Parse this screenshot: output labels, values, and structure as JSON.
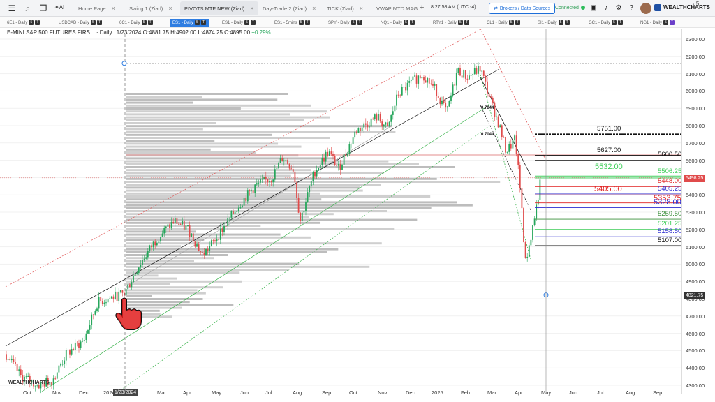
{
  "toolbar": {
    "ai_label": "AI",
    "tabs": [
      {
        "label": "Home Page"
      },
      {
        "label": "Swing 1 (Ziad)"
      },
      {
        "label": "PIVOTS MTF NEW (Ziad)"
      },
      {
        "label": "Day-Trade 2 (Ziad)"
      },
      {
        "label": "TICK (Ziad)"
      },
      {
        "label": "VWAP MTD MAG"
      }
    ],
    "close_glyph": "×",
    "add_glyph": "+",
    "time": "8:27:58 AM  (UTC -4)",
    "brokers_label": "Brokers / Data Sources",
    "connected_label": "Connected",
    "logo": "WEALTHCHARTS"
  },
  "symbols": [
    {
      "label": "6E1 - Daily",
      "b1": "5",
      "b2": "T"
    },
    {
      "label": "USDCAD - Daily",
      "b1": "5",
      "b2": "T"
    },
    {
      "label": "6C1 - Daily",
      "b1": "5",
      "b2": "T"
    },
    {
      "label": "ES1 - Daily",
      "b1": "5",
      "b2": "T"
    },
    {
      "label": "ES1 - Daily",
      "b1": "5",
      "b2": "T"
    },
    {
      "label": "ES1 - 5mins",
      "b1": "5",
      "b2": "T"
    },
    {
      "label": "SPY - Daily",
      "b1": "5",
      "b2": "T"
    },
    {
      "label": "NQ1 - Daily",
      "b1": "5",
      "b2": "T"
    },
    {
      "label": "RTY1 - Daily",
      "b1": "5",
      "b2": "T"
    },
    {
      "label": "CL1 - Daily",
      "b1": "5",
      "b2": "T"
    },
    {
      "label": "SI1 - Daily",
      "b1": "5",
      "b2": "T"
    },
    {
      "label": "GC1 - Daily",
      "b1": "5",
      "b2": "T"
    },
    {
      "label": "NG1 - Daily",
      "b1": "5",
      "b2": "T"
    }
  ],
  "symbar_more": "‹ 5",
  "legend": {
    "name": "E-MINI S&P 500 FUTURES FIRS... · Daily",
    "ohlc": "1/23/2024 O:4881.75 H:4902.00 L:4874.25 C:4895.00",
    "change": "+0.29%"
  },
  "chart_data": {
    "type": "candlestick",
    "symbol": "ES1",
    "timeframe": "Daily",
    "y_ticks": [
      "6300.00",
      "6200.00",
      "6100.00",
      "6000.00",
      "5900.00",
      "5800.00",
      "5700.00",
      "5600.00",
      "5500.00",
      "5400.00",
      "5300.00",
      "5200.00",
      "5100.00",
      "5000.00",
      "4900.00",
      "4800.00",
      "4700.00",
      "4600.00",
      "4500.00",
      "4400.00",
      "4300.00"
    ],
    "ylim": [
      4290,
      6340
    ],
    "x_ticks": [
      "Oct",
      "Nov",
      "Dec",
      "2024",
      "Mar",
      "Apr",
      "May",
      "Jun",
      "Jul",
      "Aug",
      "Sep",
      "Oct",
      "Nov",
      "Dec",
      "2025",
      "Feb",
      "Mar",
      "Apr",
      "May",
      "Jun",
      "Jul",
      "Aug",
      "Sep"
    ],
    "current_price": "5498.25",
    "crosshair_price": "4821.75",
    "crosshair_date": "1/23/2024",
    "fib_labels": [
      "0.7044",
      "0.7044"
    ],
    "levels": [
      {
        "price": 5751,
        "label": "5751.00",
        "color": "#111111"
      },
      {
        "price": 5627,
        "label": "5627.00",
        "color": "#111111"
      },
      {
        "price": 5600.5,
        "label": "5600.50",
        "color": "#111111"
      },
      {
        "price": 5532,
        "label": "5532.00",
        "color": "#3fcf5a"
      },
      {
        "price": 5506.25,
        "label": "5506.25",
        "color": "#3fcf5a"
      },
      {
        "price": 5448,
        "label": "5448.00",
        "color": "#e02020"
      },
      {
        "price": 5405,
        "label": "5405.00",
        "color": "#e02020"
      },
      {
        "price": 5405.25,
        "label": "5405.25",
        "color": "#2b2bd0"
      },
      {
        "price": 5353.75,
        "label": "5353.75",
        "color": "#e02020"
      },
      {
        "price": 5328,
        "label": "5328.00",
        "color": "#2b2bd0"
      },
      {
        "price": 5259.5,
        "label": "5259.50",
        "color": "#3a8f3a"
      },
      {
        "price": 5201.25,
        "label": "5201.25",
        "color": "#3fcf5a"
      },
      {
        "price": 5158.5,
        "label": "5158.50",
        "color": "#2b2bd0"
      },
      {
        "price": 5107,
        "label": "5107.00",
        "color": "#111111"
      }
    ]
  },
  "colors": {
    "up": "#26a65b",
    "down": "#e04b4b",
    "accent": "#2f7de1"
  },
  "watermark": "WEALTHCHARTS"
}
